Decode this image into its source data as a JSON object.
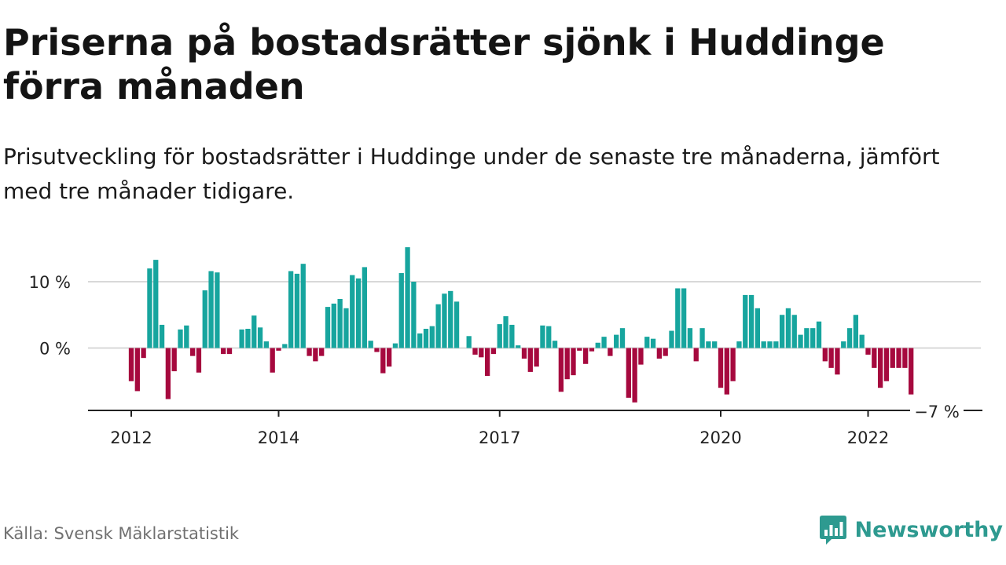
{
  "title": "Priserna på bostadsrätter sjönk i Huddinge förra månaden",
  "subtitle": "Prisutveckling för bostadsrätter i Huddinge under de senaste tre månaderna, jämfört med tre månader tidigare.",
  "source": "Källa: Svensk Mäklarstatistik",
  "brand": {
    "name": "Newsworthy",
    "icon": "bar-chart-logo-icon",
    "color": "#2e9a90"
  },
  "colors": {
    "positive": "#17a59e",
    "negative": "#a6093e",
    "grid": "#d8d8d8",
    "axis": "#222222"
  },
  "chart_data": {
    "type": "bar",
    "title": "Priserna på bostadsrätter sjönk i Huddinge förra månaden",
    "subtitle": "Prisutveckling för bostadsrätter i Huddinge under de senaste tre månaderna, jämfört med tre månader tidigare.",
    "xlabel": "",
    "ylabel": "",
    "start": "2012-01",
    "x_ticks": [
      "2012",
      "2014",
      "2017",
      "2020",
      "2022"
    ],
    "y_ticks": [
      {
        "value": 10,
        "label": "10 %"
      },
      {
        "value": 0,
        "label": "0 %"
      }
    ],
    "ylim": [
      -9,
      16
    ],
    "grid": true,
    "last_value_label": "−7 %",
    "values": [
      -5,
      -6.5,
      -1.5,
      12,
      13.3,
      3.5,
      -7.7,
      -3.5,
      2.8,
      3.4,
      -1.2,
      -3.7,
      8.7,
      11.6,
      11.4,
      -0.9,
      -0.9,
      0,
      2.8,
      2.9,
      4.9,
      3.1,
      1,
      -3.7,
      -0.4,
      0.6,
      11.6,
      11.2,
      12.7,
      -1.2,
      -2,
      -1.2,
      6.2,
      6.7,
      7.4,
      6,
      11,
      10.5,
      12.2,
      1.1,
      -0.6,
      -3.8,
      -2.8,
      0.7,
      11.3,
      15.2,
      10,
      2.2,
      2.9,
      3.3,
      6.6,
      8.2,
      8.6,
      7,
      0,
      1.8,
      -1,
      -1.4,
      -4.2,
      -0.9,
      3.6,
      4.8,
      3.5,
      0.4,
      -1.6,
      -3.6,
      -2.8,
      3.4,
      3.3,
      1.1,
      -6.6,
      -4.7,
      -4.1,
      -0.4,
      -2.4,
      -0.5,
      0.8,
      1.7,
      -1.2,
      2,
      3,
      -7.5,
      -8.2,
      -2.5,
      1.7,
      1.4,
      -1.6,
      -1.2,
      2.6,
      9,
      9,
      3,
      -2,
      3,
      1,
      1,
      -6,
      -7,
      -5,
      1,
      8,
      8,
      6,
      1,
      1,
      1,
      5,
      6,
      5,
      2,
      3,
      3,
      4,
      -2,
      -3,
      -4,
      1,
      3,
      5,
      2,
      -1,
      -3,
      -6,
      -5,
      -3,
      -3,
      -3,
      -7
    ]
  }
}
